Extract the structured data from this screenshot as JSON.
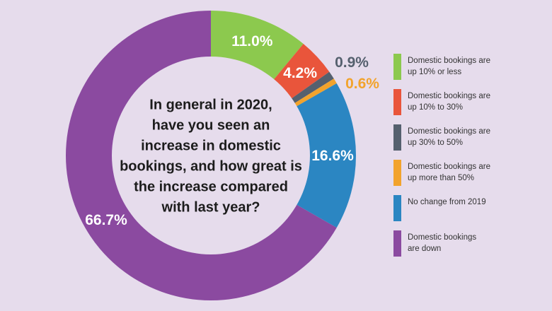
{
  "chart_data": {
    "type": "pie",
    "donut": true,
    "question": "In general in 2020, have you seen an increase in domestic bookings, and how great is the increase compared with last year?",
    "question_lines": [
      "In general in 2020,",
      "have you seen an",
      "increase in domestic",
      "bookings, and how great is",
      "the increase compared",
      "with last year?"
    ],
    "slices": [
      {
        "name": "Domestic bookings are up 10% or less",
        "value": 11.0,
        "label": "11.0%",
        "color": "#8cc94e",
        "label_color": "#ffffff"
      },
      {
        "name": "Domestic bookings are up 10% to 30%",
        "value": 4.2,
        "label": "4.2%",
        "color": "#e9553b",
        "label_color": "#ffffff"
      },
      {
        "name": "Domestic bookings are up 30% to 50%",
        "value": 0.9,
        "label": "0.9%",
        "color": "#55606e",
        "label_color": "#55606e"
      },
      {
        "name": "Domestic bookings are up more than 50%",
        "value": 0.6,
        "label": "0.6%",
        "color": "#f2a32c",
        "label_color": "#f2a32c"
      },
      {
        "name": "No change from 2019",
        "value": 16.6,
        "label": "16.6%",
        "color": "#2b86c2",
        "label_color": "#ffffff"
      },
      {
        "name": "Domestic bookings are down",
        "value": 66.7,
        "label": "66.7%",
        "color": "#8b4aa0",
        "label_color": "#ffffff"
      }
    ]
  },
  "legend": {
    "items": [
      {
        "line1": "Domestic bookings are",
        "line2": "up 10% or less",
        "color": "#8cc94e"
      },
      {
        "line1": "Domestic bookings are",
        "line2": "up 10% to 30%",
        "color": "#e9553b"
      },
      {
        "line1": "Domestic bookings are",
        "line2": "up 30% to 50%",
        "color": "#55606e"
      },
      {
        "line1": "Domestic bookings are",
        "line2": "up more than 50%",
        "color": "#f2a32c"
      },
      {
        "line1": "No change from 2019",
        "line2": "",
        "color": "#2b86c2"
      },
      {
        "line1": "Domestic bookings",
        "line2": "are down",
        "color": "#8b4aa0"
      }
    ]
  }
}
